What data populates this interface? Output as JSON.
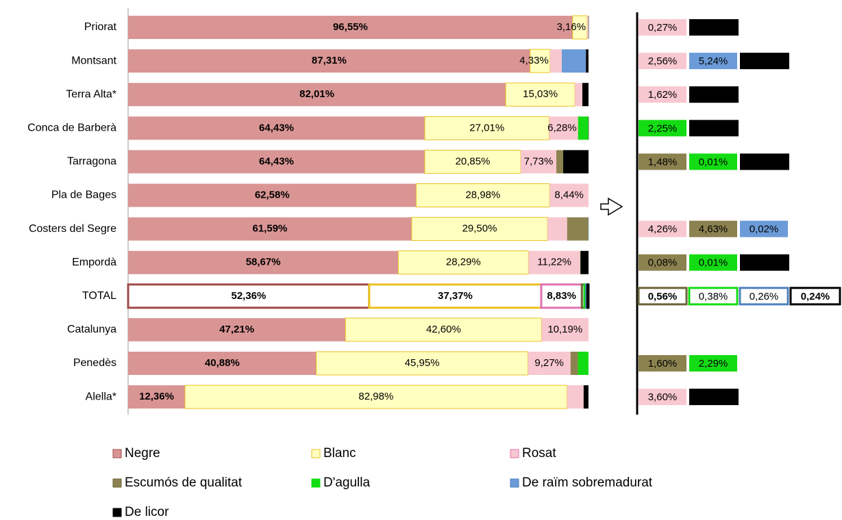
{
  "chart_data": {
    "type": "stacked_bar_horizontal",
    "categories": [
      "Priorat",
      "Montsant",
      "Terra Alta*",
      "Conca de Barberà",
      "Tarragona",
      "Pla de Bages",
      "Costers del Segre",
      "Empordà",
      "TOTAL",
      "Catalunya",
      "Penedès",
      "Alella*"
    ],
    "xlim": [
      0,
      100
    ],
    "series": [
      {
        "name": "Negre",
        "color": "#d99594",
        "values": [
          96.55,
          87.31,
          82.01,
          64.43,
          64.43,
          62.58,
          61.59,
          58.67,
          52.36,
          47.21,
          40.88,
          12.36
        ],
        "value_labels": [
          "96,55%",
          "87,31%",
          "82,01%",
          "64,43%",
          "64,43%",
          "62,58%",
          "61,59%",
          "58,67%",
          "52,36%",
          "47,21%",
          "40,88%",
          "12,36%"
        ]
      },
      {
        "name": "Blanc",
        "color": "#ffffc0",
        "values": [
          3.16,
          4.33,
          15.03,
          27.01,
          20.85,
          28.98,
          29.5,
          28.29,
          37.37,
          42.6,
          45.95,
          82.98
        ],
        "value_labels": [
          "3,16%",
          "4,33%",
          "15,03%",
          "27,01%",
          "20,85%",
          "28,98%",
          "29,50%",
          "28,29%",
          "37,37%",
          "42,60%",
          "45,95%",
          "82,98%"
        ]
      },
      {
        "name": "Rosat",
        "color": "#f8c8d0",
        "values": [
          0.27,
          2.56,
          1.62,
          6.28,
          7.73,
          8.44,
          4.26,
          11.22,
          8.83,
          10.19,
          9.27,
          3.6
        ],
        "value_labels": [
          "0,27%",
          "2,56%",
          "1,62%",
          "6,28%",
          "7,73%",
          "8,44%",
          "4,26%",
          "11,22%",
          "8,83%",
          "10,19%",
          "9,27%",
          "3,60%"
        ]
      },
      {
        "name": "Escumós de qualitat",
        "color": "#8c8250",
        "values": [
          null,
          null,
          null,
          null,
          1.48,
          null,
          4.63,
          0.08,
          0.56,
          null,
          1.6,
          null
        ],
        "value_labels": [
          null,
          null,
          null,
          null,
          "1,48%",
          null,
          "4,63%",
          "0,08%",
          "0,56%",
          null,
          "1,60%",
          null
        ]
      },
      {
        "name": "D'agulla",
        "color": "#14dc14",
        "values": [
          null,
          null,
          null,
          2.25,
          0.01,
          null,
          null,
          0.01,
          0.38,
          null,
          2.29,
          null
        ],
        "value_labels": [
          null,
          null,
          null,
          "2,25%",
          "0,01%",
          null,
          null,
          "0,01%",
          "0,38%",
          null,
          "2,29%",
          null
        ]
      },
      {
        "name": "De raïm sobremadurat",
        "color": "#6b9bd8",
        "values": [
          null,
          5.24,
          null,
          null,
          null,
          null,
          0.02,
          null,
          0.26,
          null,
          null,
          null
        ],
        "value_labels": [
          null,
          "5,24%",
          null,
          null,
          null,
          null,
          "0,02%",
          null,
          "0,26%",
          null,
          null,
          null
        ]
      },
      {
        "name": "De licor",
        "color": "#000000",
        "values": [
          0.02,
          0.55,
          1.34,
          0.03,
          5.51,
          null,
          null,
          1.74,
          0.24,
          null,
          null,
          1.05
        ],
        "value_labels": [
          "0,02%",
          "0,55%",
          "1,34%",
          "0,03%",
          "5,51%",
          null,
          null,
          "1,74%",
          "0,24%",
          null,
          null,
          "1,05%"
        ]
      }
    ]
  }
}
